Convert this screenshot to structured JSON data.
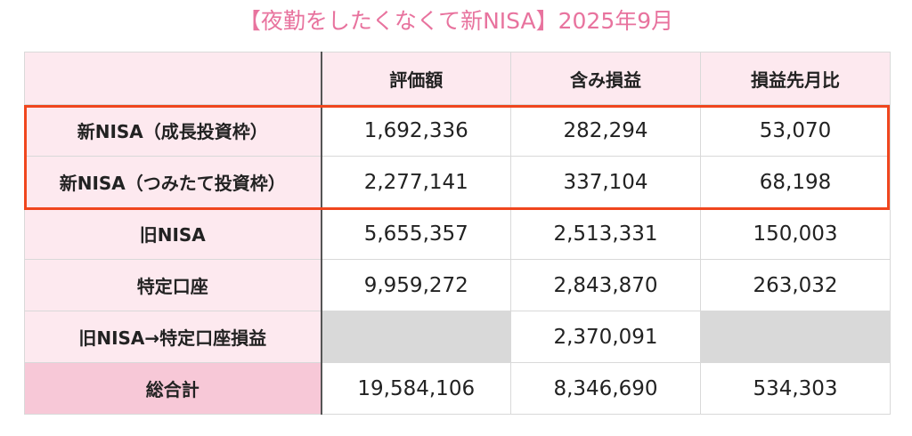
{
  "title": "【夜勤をしたくなくて新NISA】2025年9月",
  "table": {
    "headers": [
      "",
      "評価額",
      "含み損益",
      "損益先月比"
    ],
    "rows": [
      {
        "label": "新NISA（成長投資枠）",
        "values": [
          "1,692,336",
          "282,294",
          "53,070"
        ]
      },
      {
        "label": "新NISA（つみたて投資枠）",
        "values": [
          "2,277,141",
          "337,104",
          "68,198"
        ]
      },
      {
        "label": "旧NISA",
        "values": [
          "5,655,357",
          "2,513,331",
          "150,003"
        ]
      },
      {
        "label": "特定口座",
        "values": [
          "9,959,272",
          "2,843,870",
          "263,032"
        ]
      },
      {
        "label": "旧NISA→特定口座損益",
        "values": [
          "",
          "2,370,091",
          ""
        ]
      },
      {
        "label": "総合計",
        "values": [
          "19,584,106",
          "8,346,690",
          "534,303"
        ]
      }
    ]
  },
  "colors": {
    "title": "#e8739e",
    "header_bg": "#fde9ef",
    "total_label_bg": "#f7c8d7",
    "empty_cell_bg": "#d9d9d9",
    "highlight_border": "#f0461e"
  }
}
